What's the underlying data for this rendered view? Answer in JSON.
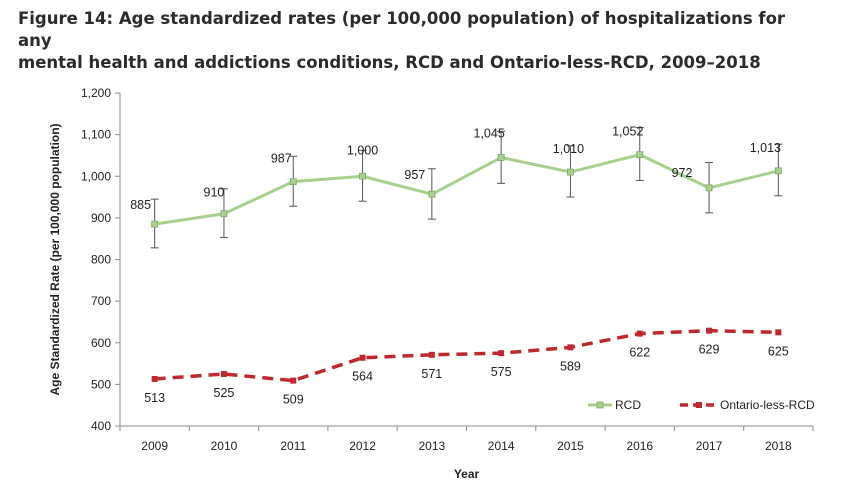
{
  "title_line1": "Figure 14: Age standardized rates (per 100,000 population) of hospitalizations for any",
  "title_line2": "mental health and addictions conditions, RCD and Ontario-less-RCD, 2009–2018",
  "chart_data": {
    "type": "line",
    "xlabel": "Year",
    "ylabel": "Age Standardized Rate (per 100,000 population)",
    "categories": [
      "2009",
      "2010",
      "2011",
      "2012",
      "2013",
      "2014",
      "2015",
      "2016",
      "2017",
      "2018"
    ],
    "ylim": [
      400,
      1200
    ],
    "yticks": [
      400,
      500,
      600,
      700,
      800,
      900,
      1000,
      1100,
      1200
    ],
    "ytick_labels": [
      "400",
      "500",
      "600",
      "700",
      "800",
      "900",
      "1,000",
      "1,100",
      "1,200"
    ],
    "grid": false,
    "legend_position": "bottom-right",
    "series": [
      {
        "name": "RCD",
        "color": "#a9d18e",
        "marker": "square",
        "line_style": "solid",
        "values": [
          885,
          910,
          987,
          1000,
          957,
          1045,
          1010,
          1052,
          972,
          1013
        ],
        "labels": [
          "885",
          "910",
          "987",
          "1,000",
          "957",
          "1,045",
          "1,010",
          "1,052",
          "972",
          "1,013"
        ],
        "error_low": [
          828,
          853,
          928,
          940,
          897,
          983,
          950,
          990,
          912,
          953
        ],
        "error_high": [
          945,
          970,
          1048,
          1062,
          1018,
          1108,
          1073,
          1117,
          1033,
          1077
        ]
      },
      {
        "name": "Ontario-less-RCD",
        "color": "#c0282d",
        "marker": "square",
        "line_style": "dashed",
        "values": [
          513,
          525,
          509,
          564,
          571,
          575,
          589,
          622,
          629,
          625
        ],
        "labels": [
          "513",
          "525",
          "509",
          "564",
          "571",
          "575",
          "589",
          "622",
          "629",
          "625"
        ]
      }
    ]
  }
}
